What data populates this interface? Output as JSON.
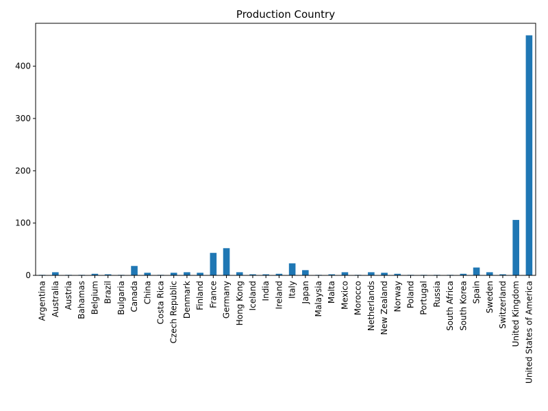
{
  "chart_data": {
    "type": "bar",
    "title": "Production Country",
    "xlabel": "",
    "ylabel": "",
    "color": "#1f77b4",
    "ylim": [
      0,
      482
    ],
    "yticks": [
      0,
      100,
      200,
      300,
      400
    ],
    "categories": [
      "Argentina",
      "Australia",
      "Austria",
      "Bahamas",
      "Belgium",
      "Brazil",
      "Bulgaria",
      "Canada",
      "China",
      "Costa Rica",
      "Czech Republic",
      "Denmark",
      "Finland",
      "France",
      "Germany",
      "Hong Kong",
      "Iceland",
      "India",
      "Ireland",
      "Italy",
      "Japan",
      "Malaysia",
      "Malta",
      "Mexico",
      "Morocco",
      "Netherlands",
      "New Zealand",
      "Norway",
      "Poland",
      "Portugal",
      "Russia",
      "South Africa",
      "South Korea",
      "Spain",
      "Sweden",
      "Switzerland",
      "United Kingdom",
      "United States of America"
    ],
    "values": [
      1,
      6,
      1,
      1,
      3,
      2,
      1,
      18,
      5,
      1,
      5,
      6,
      5,
      43,
      52,
      6,
      2,
      2,
      3,
      23,
      10,
      1,
      2,
      6,
      1,
      6,
      5,
      3,
      1,
      1,
      1,
      1,
      3,
      15,
      6,
      2,
      106,
      459
    ]
  }
}
